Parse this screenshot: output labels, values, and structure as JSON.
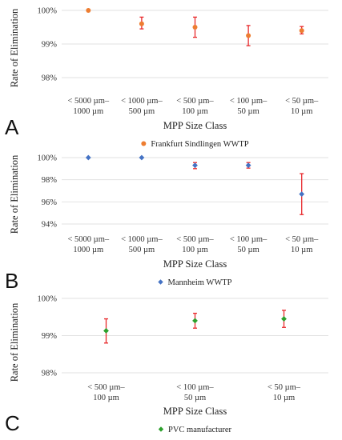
{
  "chart_data": [
    {
      "type": "scatter",
      "panel_letter": "A",
      "categories": [
        [
          "< 5000 µm–",
          "1000 µm"
        ],
        [
          "< 1000 µm–",
          "500 µm"
        ],
        [
          "< 500 µm–",
          "100 µm"
        ],
        [
          "< 100 µm–",
          "50 µm"
        ],
        [
          "< 50 µm–",
          "10 µm"
        ]
      ],
      "series": [
        {
          "name": "Frankfurt Sindlingen WWTP",
          "color": "#ed7d31",
          "marker": "circle",
          "values": [
            100.0,
            99.6,
            99.5,
            99.25,
            99.4
          ],
          "err_low": [
            100.0,
            99.45,
            99.2,
            98.95,
            99.3
          ],
          "err_high": [
            100.0,
            99.8,
            99.8,
            99.55,
            99.52
          ]
        }
      ],
      "ylabel": "Rate of Elimination",
      "xlabel": "MPP Size Class",
      "ylim": [
        98,
        100
      ],
      "yticks": [
        98,
        99,
        100
      ],
      "ytick_labels": [
        "98%",
        "99%",
        "100%"
      ],
      "grid": true,
      "legend_position": "bottom"
    },
    {
      "type": "scatter",
      "panel_letter": "B",
      "categories": [
        [
          "< 5000 µm–",
          "1000 µm"
        ],
        [
          "< 1000 µm–",
          "500 µm"
        ],
        [
          "< 500 µm–",
          "100 µm"
        ],
        [
          "< 100 µm–",
          "50 µm"
        ],
        [
          "< 50 µm–",
          "10 µm"
        ]
      ],
      "series": [
        {
          "name": "Mannheim WWTP",
          "color": "#4472c4",
          "marker": "diamond",
          "values": [
            100.0,
            100.0,
            99.3,
            99.3,
            96.7
          ],
          "err_low": [
            100.0,
            100.0,
            99.0,
            99.05,
            94.85
          ],
          "err_high": [
            100.0,
            100.0,
            99.55,
            99.55,
            98.55
          ]
        }
      ],
      "ylabel": "Rate of Elimination",
      "xlabel": "MPP Size Class",
      "ylim": [
        94,
        100
      ],
      "yticks": [
        94,
        96,
        98,
        100
      ],
      "ytick_labels": [
        "94%",
        "96%",
        "98%",
        "100%"
      ],
      "grid": true,
      "legend_position": "bottom"
    },
    {
      "type": "scatter",
      "panel_letter": "C",
      "categories": [
        [
          "< 500 µm–",
          "100 µm"
        ],
        [
          "< 100 µm–",
          "50 µm"
        ],
        [
          "< 50 µm–",
          "10 µm"
        ]
      ],
      "series": [
        {
          "name": "PVC manufacturer",
          "color": "#2ca02c",
          "marker": "diamond",
          "values": [
            99.13,
            99.4,
            99.45
          ],
          "err_low": [
            98.8,
            99.2,
            99.22
          ],
          "err_high": [
            99.45,
            99.6,
            99.68
          ]
        }
      ],
      "ylabel": "Rate of Elimination",
      "xlabel": "MPP Size Class",
      "ylim": [
        98,
        100
      ],
      "yticks": [
        98,
        99,
        100
      ],
      "ytick_labels": [
        "98%",
        "99%",
        "100%"
      ],
      "grid": true,
      "legend_position": "bottom"
    }
  ]
}
